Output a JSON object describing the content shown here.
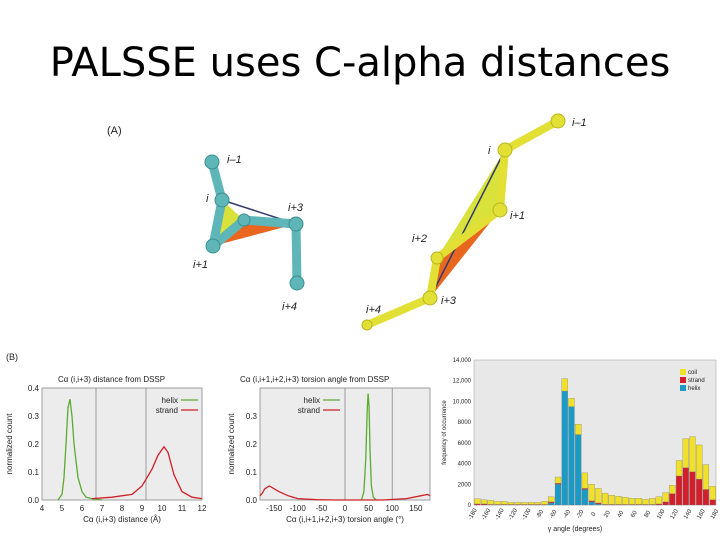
{
  "title": "PALSSE uses C-alpha distances",
  "panel_a": {
    "label": "(A)",
    "helix_labels": [
      "i–1",
      "i",
      "i+3",
      "i+1",
      "i+4"
    ],
    "strand_labels": [
      "i–1",
      "i",
      "i+1",
      "i+2",
      "i+3",
      "i+4"
    ],
    "colors": {
      "helix": "#5fb6b8",
      "strand": "#e2e035",
      "plane1": "#d8e23a",
      "plane2": "#e8661e",
      "link": "#333a6e"
    }
  },
  "panel_b": {
    "label": "(B)"
  },
  "chart_data": [
    {
      "type": "line",
      "title": "Cα (i,i+3) distance from DSSP",
      "xlabel": "Cα (i,i+3) distance (Å)",
      "ylabel": "normalized count",
      "xlim": [
        4,
        12
      ],
      "ylim": [
        0,
        0.4
      ],
      "xticks": [
        "4",
        "5",
        "6",
        "7",
        "8",
        "9",
        "10",
        "11",
        "12"
      ],
      "yticks": [
        "0.0",
        "0.1",
        "0.2",
        "0.3",
        "0.4"
      ],
      "vlines": [
        6.7,
        9.2
      ],
      "legend": "top-right",
      "series": [
        {
          "name": "helix",
          "color": "#5aab32",
          "x": [
            4.8,
            5.0,
            5.1,
            5.2,
            5.3,
            5.4,
            5.5,
            5.6,
            5.8,
            6.0,
            6.2,
            6.5,
            7.0
          ],
          "y": [
            0.0,
            0.02,
            0.08,
            0.2,
            0.33,
            0.36,
            0.3,
            0.2,
            0.08,
            0.03,
            0.01,
            0.005,
            0.0
          ]
        },
        {
          "name": "strand",
          "color": "#cf2027",
          "x": [
            6.5,
            7.5,
            8.5,
            9.0,
            9.5,
            9.8,
            10.1,
            10.3,
            10.6,
            11.0,
            11.5,
            12.0
          ],
          "y": [
            0.005,
            0.01,
            0.02,
            0.05,
            0.11,
            0.16,
            0.19,
            0.17,
            0.09,
            0.03,
            0.01,
            0.005
          ]
        }
      ]
    },
    {
      "type": "line",
      "title": "Cα (i,i+1,i+2,i+3) torsion angle from DSSP",
      "xlabel": "Cα (i,i+1,i+2,i+3) torsion angle (°)",
      "ylabel": "normalized count",
      "xlim": [
        -180,
        180
      ],
      "ylim": [
        0,
        0.4
      ],
      "xticks": [
        "-150",
        "-100",
        "-50",
        "0",
        "50",
        "100",
        "150"
      ],
      "yticks": [
        "0.0",
        "0.1",
        "0.2",
        "0.3"
      ],
      "vlines": [
        0,
        100
      ],
      "legend": "top-left",
      "series": [
        {
          "name": "helix",
          "color": "#5aab32",
          "x": [
            35,
            40,
            44,
            47,
            49,
            51,
            53,
            56,
            60,
            66
          ],
          "y": [
            0.0,
            0.03,
            0.15,
            0.32,
            0.38,
            0.33,
            0.18,
            0.05,
            0.01,
            0.0
          ]
        },
        {
          "name": "strand",
          "color": "#cf2027",
          "x": [
            -180,
            -175,
            -170,
            -160,
            -150,
            -140,
            -120,
            -100,
            -60,
            -20,
            80,
            130,
            160,
            175,
            180
          ],
          "y": [
            0.015,
            0.025,
            0.04,
            0.05,
            0.04,
            0.03,
            0.015,
            0.005,
            0.001,
            0.0,
            0.0,
            0.005,
            0.015,
            0.02,
            0.015
          ]
        }
      ]
    },
    {
      "type": "bar",
      "stacked": true,
      "xlabel": "γ angle (degrees)",
      "ylabel": "frequency of occurrence",
      "ylim": [
        0,
        14000
      ],
      "yticks": [
        "0",
        "2000",
        "4000",
        "6000",
        "8000",
        "10,000",
        "12,000",
        "14,000"
      ],
      "xticks": [
        "-180",
        "-160",
        "-140",
        "-120",
        "-100",
        "-80",
        "-60",
        "-40",
        "-20",
        "0",
        "20",
        "40",
        "60",
        "80",
        "100",
        "120",
        "140",
        "160",
        "180"
      ],
      "legend": "top-right",
      "bins": [
        -180,
        -170,
        -160,
        -150,
        -140,
        -130,
        -120,
        -110,
        -100,
        -90,
        -80,
        -70,
        -60,
        -50,
        -40,
        -30,
        -20,
        -10,
        0,
        10,
        20,
        30,
        40,
        50,
        60,
        70,
        80,
        90,
        100,
        110,
        120,
        130,
        140,
        150,
        160,
        170
      ],
      "series": [
        {
          "name": "helix",
          "color": "#1c9ac6",
          "values": [
            0,
            0,
            0,
            0,
            0,
            0,
            0,
            0,
            0,
            0,
            0,
            200,
            2000,
            11000,
            9500,
            6800,
            1500,
            300,
            100,
            0,
            0,
            0,
            0,
            0,
            0,
            0,
            0,
            0,
            0,
            0,
            0,
            0,
            0,
            0,
            0,
            0
          ]
        },
        {
          "name": "strand",
          "color": "#d11f2c",
          "values": [
            100,
            100,
            50,
            50,
            50,
            50,
            50,
            50,
            50,
            50,
            50,
            100,
            100,
            0,
            0,
            0,
            100,
            100,
            100,
            50,
            50,
            50,
            50,
            50,
            50,
            50,
            50,
            100,
            300,
            1100,
            2800,
            3600,
            3200,
            2500,
            1500,
            500
          ]
        },
        {
          "name": "coil",
          "color": "#f0e02a",
          "values": [
            500,
            400,
            400,
            300,
            300,
            200,
            200,
            200,
            200,
            200,
            300,
            500,
            600,
            1200,
            800,
            1000,
            1500,
            1600,
            1400,
            1100,
            900,
            800,
            700,
            600,
            600,
            500,
            600,
            700,
            900,
            800,
            1500,
            2800,
            3400,
            3300,
            2400,
            1300
          ]
        }
      ]
    }
  ]
}
